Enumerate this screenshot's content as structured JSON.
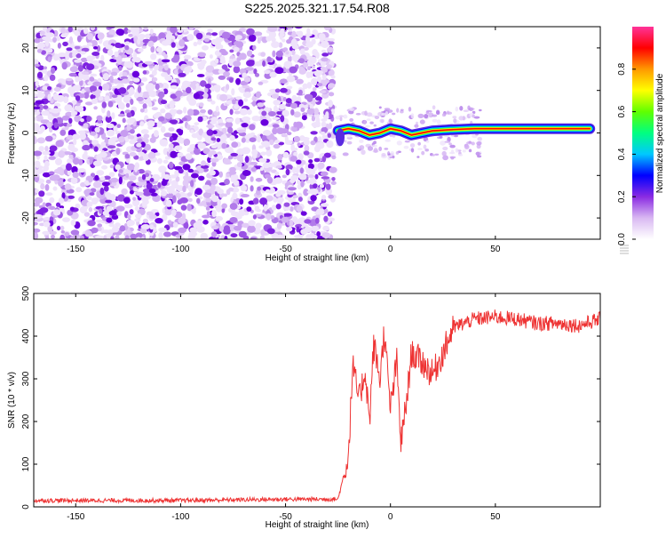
{
  "title": "S225.2025.321.17.54.R08",
  "chart_data": [
    {
      "type": "heatmap",
      "xlabel": "Height of straight line (km)",
      "ylabel": "Frequency (Hz)",
      "xlim": [
        -170,
        100
      ],
      "ylim": [
        -25,
        25
      ],
      "x_ticks": [
        -150,
        -100,
        -50,
        0,
        50
      ],
      "y_ticks": [
        -20,
        -10,
        0,
        10,
        20
      ],
      "colorbar": {
        "label": "Normalized spectral amplitude",
        "range": [
          0,
          1
        ],
        "ticks": [
          "0.0",
          "0.2",
          "0.4",
          "0.6",
          "0.8"
        ],
        "colors": [
          "#ffffff",
          "#d9b8f2",
          "#8a2be2",
          "#0000ff",
          "#00c8ff",
          "#00ff80",
          "#60ff00",
          "#ffff00",
          "#ff9900",
          "#ff0000",
          "#ff3399"
        ]
      },
      "grid": false,
      "ridge": {
        "x": [
          -25,
          -20,
          -15,
          -10,
          -5,
          0,
          5,
          10,
          15,
          20,
          30,
          40,
          50,
          60,
          70,
          80,
          95
        ],
        "y": [
          0.5,
          1.0,
          0.5,
          -0.5,
          0.0,
          1.0,
          0.5,
          -0.5,
          0.0,
          0.5,
          0.8,
          1.0,
          1.0,
          1.0,
          1.0,
          1.0,
          1.0
        ]
      },
      "noise_region_x": [
        -170,
        -27
      ]
    },
    {
      "type": "line",
      "xlabel": "Height of straight line (km)",
      "ylabel": "SNR (10 * v/v)",
      "xlim": [
        -170,
        100
      ],
      "ylim": [
        0,
        500
      ],
      "x_ticks": [
        -150,
        -100,
        -50,
        0,
        50
      ],
      "y_ticks": [
        0,
        100,
        200,
        300,
        400,
        500
      ],
      "color": "#ee3333",
      "grid": false,
      "series": [
        {
          "x": [
            -170,
            -150,
            -100,
            -50,
            -25,
            -20,
            -18,
            -15,
            -12,
            -10,
            -8,
            -5,
            -3,
            0,
            3,
            5,
            8,
            10,
            15,
            20,
            25,
            30,
            40,
            50,
            60,
            70,
            80,
            90,
            100
          ],
          "values": [
            15,
            15,
            15,
            18,
            18,
            120,
            330,
            250,
            320,
            200,
            380,
            300,
            410,
            230,
            340,
            150,
            260,
            360,
            340,
            310,
            360,
            420,
            440,
            445,
            440,
            430,
            430,
            425,
            440
          ]
        }
      ]
    }
  ]
}
